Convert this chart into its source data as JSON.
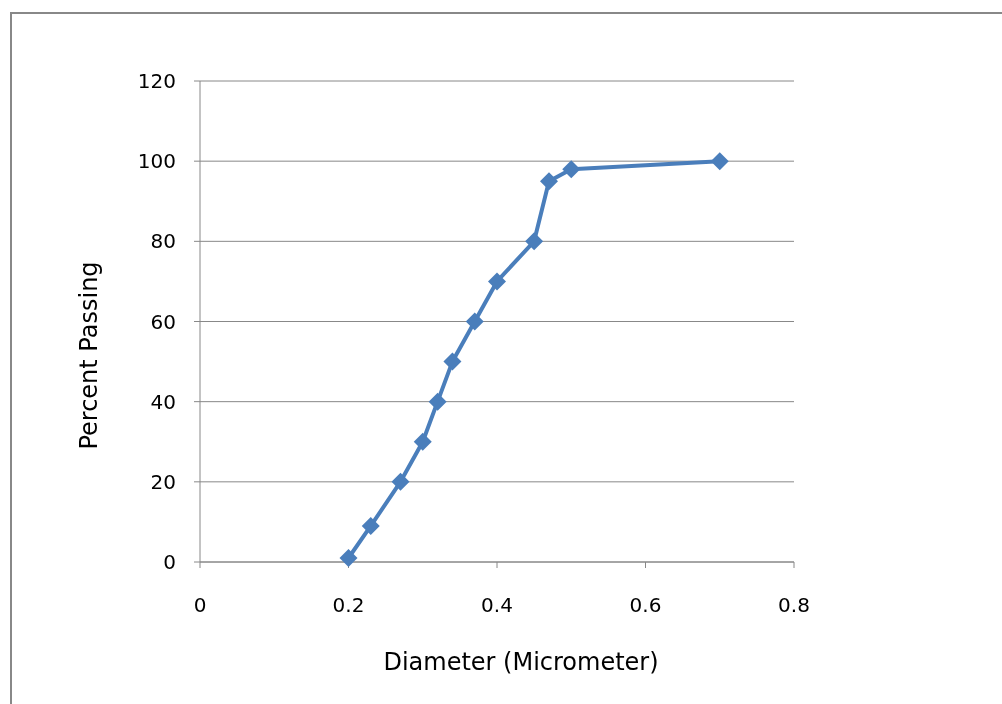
{
  "chart_data": {
    "type": "line",
    "xlabel": "Diameter (Micrometer)",
    "ylabel": "Percent Passing",
    "x": [
      0.2,
      0.23,
      0.27,
      0.3,
      0.32,
      0.34,
      0.37,
      0.4,
      0.45,
      0.47,
      0.5,
      0.7
    ],
    "series": [
      {
        "color": "#4a7ebb",
        "values": [
          1,
          9,
          20,
          30,
          40,
          50,
          60,
          70,
          80,
          95,
          98,
          100
        ]
      }
    ],
    "xlim": [
      0,
      0.8
    ],
    "xticks": [
      0,
      0.2,
      0.4,
      0.6,
      0.8
    ],
    "ylim": [
      0,
      120
    ],
    "yticks": [
      0,
      20,
      40,
      60,
      80,
      100,
      120
    ],
    "grid": "y",
    "marker": "diamond",
    "line_style": "solid"
  }
}
